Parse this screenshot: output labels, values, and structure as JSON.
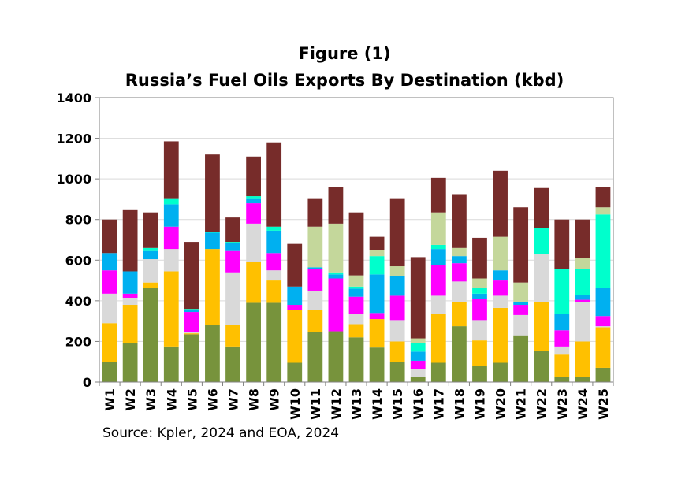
{
  "chart_data": {
    "type": "bar",
    "stacked": true,
    "title": "Figure (1)",
    "subtitle": "Russia’s Fuel Oils Exports By Destination (kbd)",
    "source": "Source: Kpler, 2024 and EOA, 2024",
    "categories": [
      "W1",
      "W2",
      "W3",
      "W4",
      "W5",
      "W6",
      "W7",
      "W8",
      "W9",
      "W10",
      "W11",
      "W12",
      "W13",
      "W14",
      "W15",
      "W16",
      "W17",
      "W18",
      "W19",
      "W20",
      "W21",
      "W22",
      "W23",
      "W24",
      "W25"
    ],
    "ylim": [
      0,
      1400
    ],
    "yticks": [
      0,
      200,
      400,
      600,
      800,
      1000,
      1200,
      1400
    ],
    "grid": true,
    "legend": "none",
    "series": [
      {
        "color": "#77933c",
        "values": [
          100,
          190,
          465,
          175,
          235,
          280,
          175,
          390,
          390,
          95,
          245,
          250,
          220,
          170,
          100,
          25,
          95,
          275,
          80,
          95,
          230,
          155,
          25,
          25,
          70
        ]
      },
      {
        "color": "#ffc000",
        "values": [
          190,
          190,
          25,
          370,
          5,
          375,
          105,
          200,
          110,
          260,
          110,
          0,
          65,
          140,
          100,
          0,
          240,
          120,
          125,
          270,
          0,
          240,
          110,
          175,
          200
        ]
      },
      {
        "color": "#d9d9d9",
        "values": [
          145,
          35,
          115,
          110,
          5,
          0,
          260,
          190,
          50,
          0,
          95,
          0,
          50,
          0,
          105,
          40,
          90,
          100,
          100,
          60,
          100,
          235,
          40,
          195,
          5
        ]
      },
      {
        "color": "#ff00ff",
        "values": [
          115,
          20,
          0,
          110,
          100,
          0,
          105,
          100,
          85,
          25,
          105,
          260,
          85,
          30,
          120,
          40,
          150,
          90,
          105,
          75,
          50,
          0,
          80,
          10,
          50
        ]
      },
      {
        "color": "#00b0f0",
        "values": [
          85,
          110,
          40,
          110,
          10,
          80,
          40,
          25,
          110,
          90,
          10,
          20,
          40,
          190,
          95,
          45,
          80,
          35,
          25,
          50,
          15,
          0,
          80,
          25,
          140
        ]
      },
      {
        "color": "#00ffcc",
        "values": [
          0,
          0,
          15,
          30,
          5,
          5,
          5,
          10,
          20,
          0,
          0,
          10,
          10,
          90,
          0,
          40,
          20,
          0,
          30,
          0,
          0,
          130,
          220,
          125,
          360
        ]
      },
      {
        "color": "#c4d79b",
        "values": [
          0,
          0,
          0,
          0,
          0,
          0,
          0,
          0,
          0,
          0,
          200,
          240,
          55,
          30,
          50,
          25,
          160,
          40,
          45,
          165,
          95,
          0,
          0,
          55,
          35
        ]
      },
      {
        "color": "#772c2a",
        "values": [
          165,
          305,
          175,
          280,
          330,
          380,
          120,
          195,
          415,
          210,
          140,
          180,
          310,
          65,
          335,
          400,
          170,
          265,
          200,
          325,
          370,
          195,
          245,
          190,
          100
        ]
      }
    ]
  }
}
